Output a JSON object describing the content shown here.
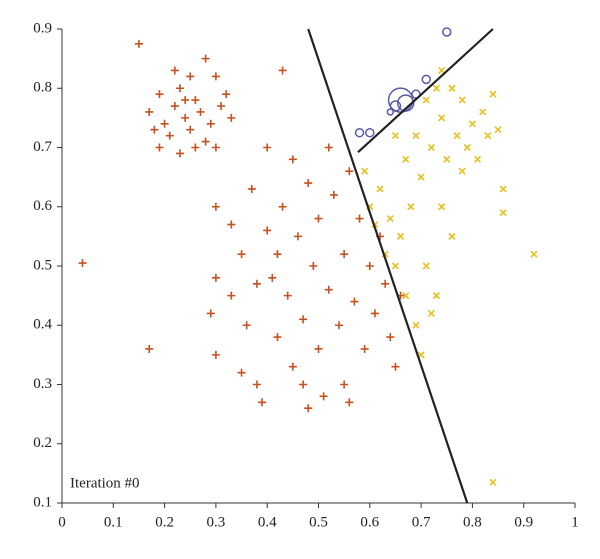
{
  "chart_data": {
    "type": "scatter",
    "annotation": "Iteration #0",
    "xlim": [
      0,
      1
    ],
    "ylim": [
      0.1,
      0.9
    ],
    "xticks": [
      0,
      0.1,
      0.2,
      0.3,
      0.4,
      0.5,
      0.6,
      0.7,
      0.8,
      0.9,
      1
    ],
    "yticks": [
      0.1,
      0.2,
      0.3,
      0.4,
      0.5,
      0.6,
      0.7,
      0.8,
      0.9
    ],
    "series": [
      {
        "marker": "plus",
        "color": "#c8501e",
        "x": [
          0.17,
          0.19,
          0.2,
          0.21,
          0.22,
          0.23,
          0.24,
          0.25,
          0.26,
          0.27,
          0.28,
          0.29,
          0.3,
          0.31,
          0.32,
          0.22,
          0.25,
          0.28,
          0.19,
          0.23,
          0.26,
          0.3,
          0.33,
          0.18,
          0.24,
          0.04,
          0.15,
          0.17,
          0.43,
          0.3,
          0.3,
          0.29,
          0.3,
          0.33,
          0.35,
          0.36,
          0.37,
          0.38,
          0.39,
          0.4,
          0.41,
          0.42,
          0.43,
          0.44,
          0.45,
          0.45,
          0.46,
          0.47,
          0.48,
          0.49,
          0.5,
          0.5,
          0.51,
          0.52,
          0.53,
          0.54,
          0.55,
          0.55,
          0.56,
          0.57,
          0.58,
          0.59,
          0.6,
          0.61,
          0.62,
          0.63,
          0.64,
          0.65,
          0.66,
          0.4,
          0.35,
          0.33,
          0.48,
          0.52,
          0.42,
          0.38,
          0.47,
          0.56
        ],
        "y": [
          0.76,
          0.79,
          0.74,
          0.72,
          0.77,
          0.8,
          0.75,
          0.73,
          0.78,
          0.76,
          0.71,
          0.74,
          0.7,
          0.77,
          0.79,
          0.83,
          0.82,
          0.85,
          0.7,
          0.69,
          0.7,
          0.82,
          0.75,
          0.73,
          0.78,
          0.505,
          0.875,
          0.36,
          0.83,
          0.6,
          0.48,
          0.42,
          0.35,
          0.45,
          0.52,
          0.4,
          0.63,
          0.3,
          0.27,
          0.56,
          0.48,
          0.38,
          0.6,
          0.45,
          0.68,
          0.33,
          0.55,
          0.41,
          0.64,
          0.5,
          0.36,
          0.58,
          0.28,
          0.46,
          0.62,
          0.4,
          0.52,
          0.3,
          0.66,
          0.44,
          0.58,
          0.36,
          0.5,
          0.42,
          0.55,
          0.47,
          0.38,
          0.33,
          0.45,
          0.7,
          0.32,
          0.57,
          0.26,
          0.7,
          0.52,
          0.47,
          0.3,
          0.27
        ]
      },
      {
        "marker": "x",
        "color": "#e8c020",
        "x": [
          0.59,
          0.6,
          0.61,
          0.62,
          0.63,
          0.64,
          0.65,
          0.66,
          0.67,
          0.68,
          0.69,
          0.7,
          0.7,
          0.71,
          0.72,
          0.73,
          0.74,
          0.74,
          0.75,
          0.76,
          0.76,
          0.77,
          0.78,
          0.78,
          0.79,
          0.8,
          0.81,
          0.82,
          0.83,
          0.84,
          0.85,
          0.86,
          0.86,
          0.92,
          0.84,
          0.71,
          0.73,
          0.69,
          0.67,
          0.72,
          0.74,
          0.65
        ],
        "y": [
          0.66,
          0.6,
          0.57,
          0.63,
          0.52,
          0.58,
          0.5,
          0.55,
          0.45,
          0.6,
          0.4,
          0.35,
          0.65,
          0.5,
          0.7,
          0.45,
          0.6,
          0.75,
          0.68,
          0.8,
          0.55,
          0.72,
          0.66,
          0.78,
          0.7,
          0.74,
          0.68,
          0.76,
          0.72,
          0.79,
          0.73,
          0.63,
          0.59,
          0.52,
          0.135,
          0.78,
          0.8,
          0.72,
          0.68,
          0.42,
          0.83,
          0.72
        ]
      },
      {
        "marker": "circle",
        "color": "#5a5aaa",
        "x": [
          0.75,
          0.58,
          0.6,
          0.66,
          0.67,
          0.71,
          0.65,
          0.69,
          0.64
        ],
        "y": [
          0.895,
          0.725,
          0.725,
          0.78,
          0.775,
          0.815,
          0.77,
          0.79,
          0.76
        ],
        "sizes": [
          4,
          4,
          4,
          12,
          8,
          4,
          5,
          4,
          3
        ]
      }
    ],
    "lines": [
      {
        "color": "#222222",
        "x": [
          0.48,
          0.79
        ],
        "y": [
          0.9,
          0.1
        ]
      },
      {
        "color": "#222222",
        "x": [
          0.577,
          0.84
        ],
        "y": [
          0.692,
          0.9
        ]
      }
    ]
  }
}
